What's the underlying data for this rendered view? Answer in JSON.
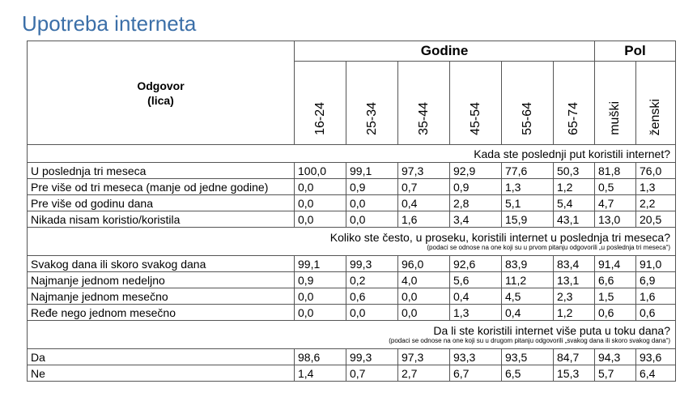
{
  "title": "Upotreba interneta",
  "header": {
    "odgovor": "Odgovor",
    "lica": "(lica)",
    "godine": "Godine",
    "pol": "Pol",
    "columns": [
      "16-24",
      "25-34",
      "35-44",
      "45-54",
      "55-64",
      "65-74",
      "muški",
      "ženski"
    ]
  },
  "sections": [
    {
      "question": "Kada ste poslednji put koristili internet?",
      "note": "",
      "rows": [
        {
          "label": "U poslednja tri meseca",
          "values": [
            "100,0",
            "99,1",
            "97,3",
            "92,9",
            "77,6",
            "50,3",
            "81,8",
            "76,0"
          ]
        },
        {
          "label": "Pre više od tri meseca (manje od jedne godine)",
          "values": [
            "0,0",
            "0,9",
            "0,7",
            "0,9",
            "1,3",
            "1,2",
            "0,5",
            "1,3"
          ]
        },
        {
          "label": "Pre više od godinu dana",
          "values": [
            "0,0",
            "0,0",
            "0,4",
            "2,8",
            "5,1",
            "5,4",
            "4,7",
            "2,2"
          ]
        },
        {
          "label": "Nikada nisam koristio/koristila",
          "values": [
            "0,0",
            "0,0",
            "1,6",
            "3,4",
            "15,9",
            "43,1",
            "13,0",
            "20,5"
          ]
        }
      ]
    },
    {
      "question": "Koliko ste često, u proseku, koristili internet u poslednja tri meseca?",
      "note": "(podaci se odnose na one koji su u prvom  pitanju odgovorili „u poslednja tri meseca“)",
      "rows": [
        {
          "label": "Svakog dana ili skoro svakog dana",
          "values": [
            "99,1",
            "99,3",
            "96,0",
            "92,6",
            "83,9",
            "83,4",
            "91,4",
            "91,0"
          ]
        },
        {
          "label": "Najmanje jednom nedeljno",
          "values": [
            "0,9",
            "0,2",
            "4,0",
            "5,6",
            "11,2",
            "13,1",
            "6,6",
            "6,9"
          ]
        },
        {
          "label": "Najmanje jednom mesečno",
          "values": [
            "0,0",
            "0,6",
            "0,0",
            "0,4",
            "4,5",
            "2,3",
            "1,5",
            "1,6"
          ]
        },
        {
          "label": "Ređe nego jednom mesečno",
          "values": [
            "0,0",
            "0,0",
            "0,0",
            "1,3",
            "0,4",
            "1,2",
            "0,6",
            "0,6"
          ]
        }
      ]
    },
    {
      "question": "Da li ste koristili internet više puta u toku dana?",
      "note": "(podaci se odnose na one koji su u drugom  pitanju odgovorili „svakog dana ili skoro svakog dana“)",
      "rows": [
        {
          "label": "Da",
          "values": [
            "98,6",
            "99,3",
            "97,3",
            "93,3",
            "93,5",
            "84,7",
            "94,3",
            "93,6"
          ]
        },
        {
          "label": "Ne",
          "values": [
            "1,4",
            "0,7",
            "2,7",
            "6,7",
            "6,5",
            "15,3",
            "5,7",
            "6,4"
          ]
        }
      ]
    }
  ]
}
